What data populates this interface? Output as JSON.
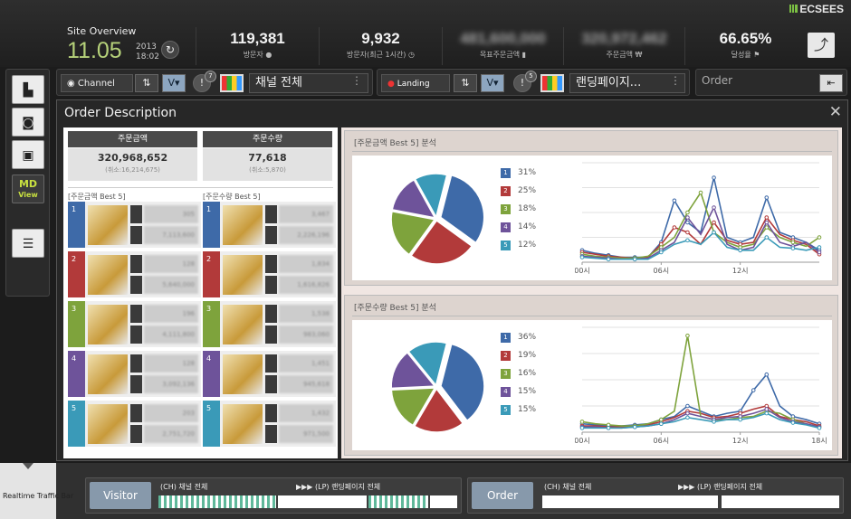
{
  "brand": "ECSEES",
  "site_overview": {
    "title": "Site Overview",
    "value": "11.05",
    "year": "2013",
    "time": "18:02"
  },
  "kpis": [
    {
      "value": "119,381",
      "label": "방문자"
    },
    {
      "value": "9,932",
      "label": "방문자(최근 1시간)"
    },
    {
      "value": "481,600,000",
      "label": "목표주문금액"
    },
    {
      "value": "320,972,462",
      "label": "주문금액 ₩"
    },
    {
      "value": "66.65%",
      "label": "달성율"
    }
  ],
  "controls": {
    "channel_label": "Channel",
    "v_label": "V▾",
    "channel_badge": "7",
    "channel_select": "채널 전체",
    "landing_label": "Landing page",
    "landing_badge": "5",
    "landing_select": "랜딩페이지...",
    "order_label": "Order"
  },
  "sidebar": {
    "md_line1": "MD",
    "md_line2": "View"
  },
  "modal": {
    "title": "Order Description",
    "summary": [
      {
        "header": "주문금액",
        "value": "320,968,652",
        "sub": "(취소:16,214,675)"
      },
      {
        "header": "주문수량",
        "value": "77,618",
        "sub": "(취소:5,870)"
      }
    ],
    "best_amount_label": "[주문금액 Best 5]",
    "best_qty_label": "[주문수량 Best 5]",
    "best_amount": [
      {
        "rank": "1",
        "v1": "305",
        "v2": "7,113,600"
      },
      {
        "rank": "2",
        "v1": "128",
        "v2": "5,640,000"
      },
      {
        "rank": "3",
        "v1": "196",
        "v2": "4,111,800"
      },
      {
        "rank": "4",
        "v1": "128",
        "v2": "3,092,136"
      },
      {
        "rank": "5",
        "v1": "203",
        "v2": "2,751,720"
      }
    ],
    "best_qty": [
      {
        "rank": "1",
        "v1": "3,467",
        "v2": "2,226,196"
      },
      {
        "rank": "2",
        "v1": "1,834",
        "v2": "1,616,826"
      },
      {
        "rank": "3",
        "v1": "1,538",
        "v2": "983,060"
      },
      {
        "rank": "4",
        "v1": "1,451",
        "v2": "945,618"
      },
      {
        "rank": "5",
        "v1": "1,432",
        "v2": "971,500"
      }
    ],
    "rank_colors": [
      "#3e6aa8",
      "#b23a3a",
      "#7ea33c",
      "#6e539a",
      "#3a9ab8"
    ],
    "amount_panel_title": "[주문금액 Best 5] 분석",
    "qty_panel_title": "[주문수량 Best 5] 분석"
  },
  "chart_data": [
    {
      "type": "pie",
      "labels": [
        "1",
        "2",
        "3",
        "4",
        "5"
      ],
      "values": [
        31,
        25,
        18,
        14,
        12
      ],
      "legend": [
        "31%",
        "25%",
        "18%",
        "14%",
        "12%"
      ]
    },
    {
      "type": "line",
      "x_ticks": [
        "00시",
        "06시",
        "12시"
      ],
      "x": [
        0,
        1,
        2,
        3,
        4,
        5,
        6,
        7,
        8,
        9,
        10,
        11,
        12,
        13,
        14,
        15,
        16,
        17,
        18
      ],
      "ylim": [
        0,
        100
      ],
      "series": [
        {
          "values": [
            12,
            9,
            7,
            5,
            5,
            5,
            20,
            62,
            40,
            30,
            85,
            25,
            20,
            25,
            65,
            30,
            25,
            20,
            12
          ]
        },
        {
          "values": [
            10,
            8,
            6,
            5,
            4,
            5,
            18,
            35,
            30,
            18,
            40,
            22,
            18,
            20,
            45,
            28,
            22,
            18,
            8
          ]
        },
        {
          "values": [
            8,
            6,
            5,
            4,
            4,
            6,
            15,
            25,
            50,
            70,
            30,
            20,
            15,
            18,
            35,
            25,
            20,
            16,
            25
          ]
        },
        {
          "values": [
            6,
            5,
            4,
            3,
            3,
            4,
            12,
            20,
            45,
            28,
            55,
            18,
            12,
            15,
            40,
            20,
            16,
            20,
            10
          ]
        },
        {
          "values": [
            5,
            4,
            3,
            3,
            3,
            3,
            10,
            18,
            22,
            18,
            30,
            15,
            12,
            12,
            25,
            15,
            14,
            12,
            15
          ]
        }
      ]
    },
    {
      "type": "pie",
      "labels": [
        "1",
        "2",
        "3",
        "4",
        "5"
      ],
      "values": [
        36,
        19,
        16,
        15,
        15
      ],
      "legend": [
        "36%",
        "19%",
        "16%",
        "15%",
        "15%"
      ]
    },
    {
      "type": "line",
      "x_ticks": [
        "00시",
        "06시",
        "12시",
        "18시"
      ],
      "x": [
        0,
        1,
        2,
        3,
        4,
        5,
        6,
        7,
        8,
        9,
        10,
        11,
        12,
        13,
        14,
        15,
        16,
        17,
        18
      ],
      "ylim": [
        0,
        100
      ],
      "series": [
        {
          "values": [
            8,
            7,
            6,
            6,
            7,
            8,
            12,
            15,
            25,
            20,
            15,
            18,
            20,
            40,
            55,
            25,
            15,
            12,
            8
          ]
        },
        {
          "values": [
            6,
            6,
            5,
            5,
            6,
            7,
            10,
            14,
            20,
            18,
            14,
            15,
            18,
            22,
            25,
            15,
            12,
            10,
            6
          ]
        },
        {
          "values": [
            10,
            8,
            7,
            6,
            6,
            8,
            12,
            20,
            92,
            15,
            12,
            12,
            14,
            15,
            20,
            18,
            12,
            8,
            5
          ]
        },
        {
          "values": [
            5,
            5,
            4,
            4,
            5,
            6,
            8,
            12,
            18,
            15,
            12,
            14,
            15,
            18,
            22,
            14,
            10,
            8,
            5
          ]
        },
        {
          "values": [
            4,
            4,
            4,
            4,
            5,
            6,
            8,
            10,
            14,
            12,
            10,
            12,
            12,
            14,
            18,
            12,
            9,
            7,
            4
          ]
        }
      ]
    }
  ],
  "bottom": {
    "toggle_label": "Realtime Traffic Bar",
    "visitor_btn": "Visitor",
    "order_btn": "Order",
    "ch_label": "(CH) 채널 전체",
    "lp_label": "▶▶▶ (LP) 랜딩페이지 전체"
  }
}
